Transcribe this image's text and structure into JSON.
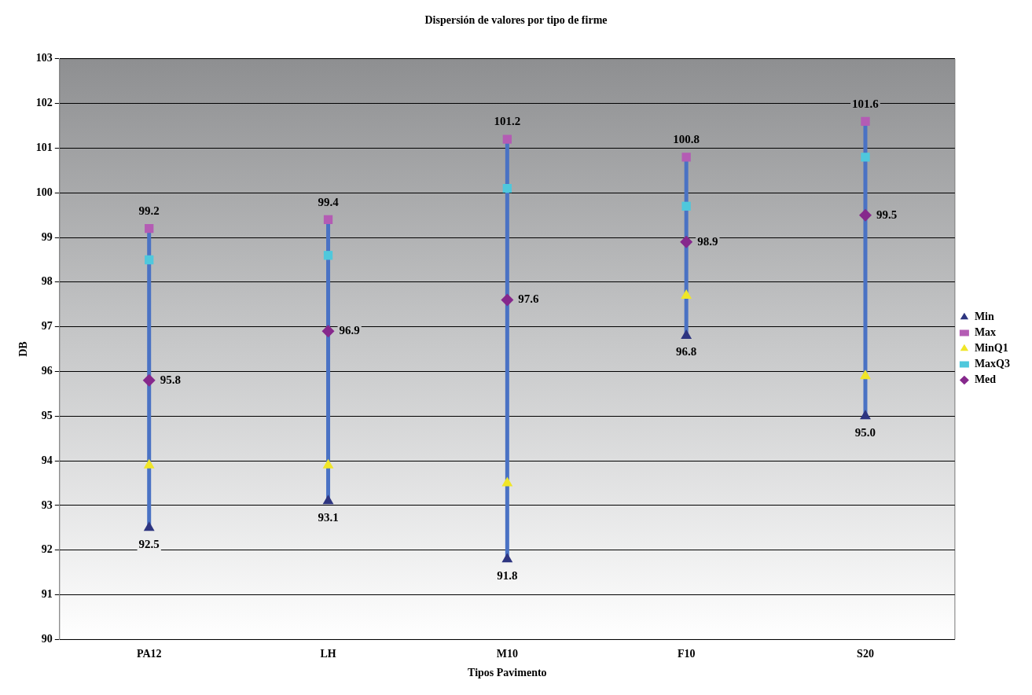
{
  "chart_data": {
    "type": "scatter",
    "title": "Dispersión de valores por tipo de firme",
    "xlabel": "Tipos Pavimento",
    "ylabel": "DB",
    "categories": [
      "PA12",
      "LH",
      "M10",
      "F10",
      "S20"
    ],
    "series": [
      {
        "name": "Min",
        "color": "#2e3580",
        "marker": "triangle",
        "values": [
          92.5,
          93.1,
          91.8,
          96.8,
          95.0
        ],
        "value_labels": [
          "92.5",
          "93.1",
          "91.8",
          "96.8",
          "95.0"
        ]
      },
      {
        "name": "Max",
        "color": "#b45cb4",
        "marker": "square",
        "values": [
          99.2,
          99.4,
          101.2,
          100.8,
          101.6
        ],
        "value_labels": [
          "99.2",
          "99.4",
          "101.2",
          "100.8",
          "101.6"
        ]
      },
      {
        "name": "MinQ1",
        "color": "#f0e628",
        "marker": "triangle",
        "values": [
          93.9,
          93.9,
          93.5,
          97.7,
          95.9
        ]
      },
      {
        "name": "MaxQ3",
        "color": "#4fc8dc",
        "marker": "square",
        "values": [
          98.5,
          98.6,
          100.1,
          99.7,
          100.8
        ]
      },
      {
        "name": "Med",
        "color": "#86288c",
        "marker": "diamond",
        "values": [
          95.8,
          96.9,
          97.6,
          98.9,
          99.5
        ],
        "value_labels": [
          "95.8",
          "96.9",
          "97.6",
          "98.9",
          "99.5"
        ]
      }
    ],
    "ylim": [
      90,
      103
    ],
    "yticks": [
      90,
      91,
      92,
      93,
      94,
      95,
      96,
      97,
      98,
      99,
      100,
      101,
      102,
      103
    ],
    "grid": "y",
    "legend": "right"
  }
}
